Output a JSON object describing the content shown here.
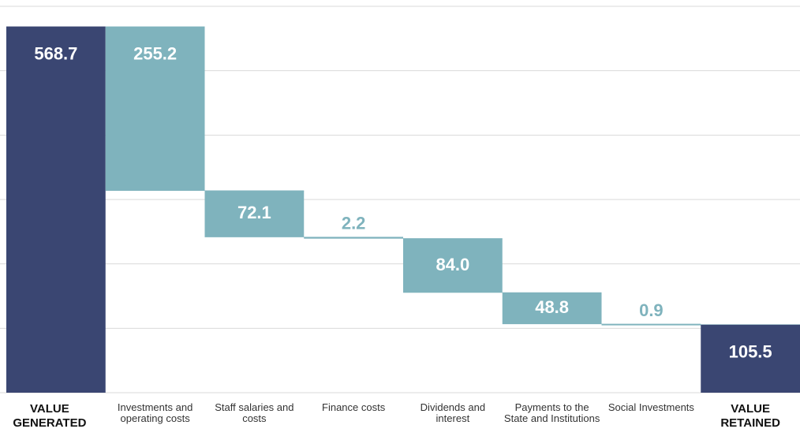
{
  "chart_data": {
    "type": "waterfall",
    "categories": [
      "VALUE GENERATED",
      "Investments and operating costs",
      "Staff salaries and costs",
      "Finance costs",
      "Dividends and interest",
      "Payments to the State and Institutions",
      "Social Investments",
      "VALUE RETAINED"
    ],
    "values": [
      568.7,
      255.2,
      72.1,
      2.2,
      84.0,
      48.8,
      0.9,
      105.5
    ],
    "value_labels": [
      "568.7",
      "255.2",
      "72.1",
      "2.2",
      "84.0",
      "48.8",
      "0.9",
      "105.5"
    ],
    "measures": [
      "total",
      "relative",
      "relative",
      "relative",
      "relative",
      "relative",
      "relative",
      "total"
    ],
    "total_color": "#3a4672",
    "step_color": "#7fb3bd",
    "ylim": [
      0,
      600
    ],
    "yticks": [
      0,
      100,
      200,
      300,
      400,
      500,
      600
    ],
    "grid": true
  }
}
